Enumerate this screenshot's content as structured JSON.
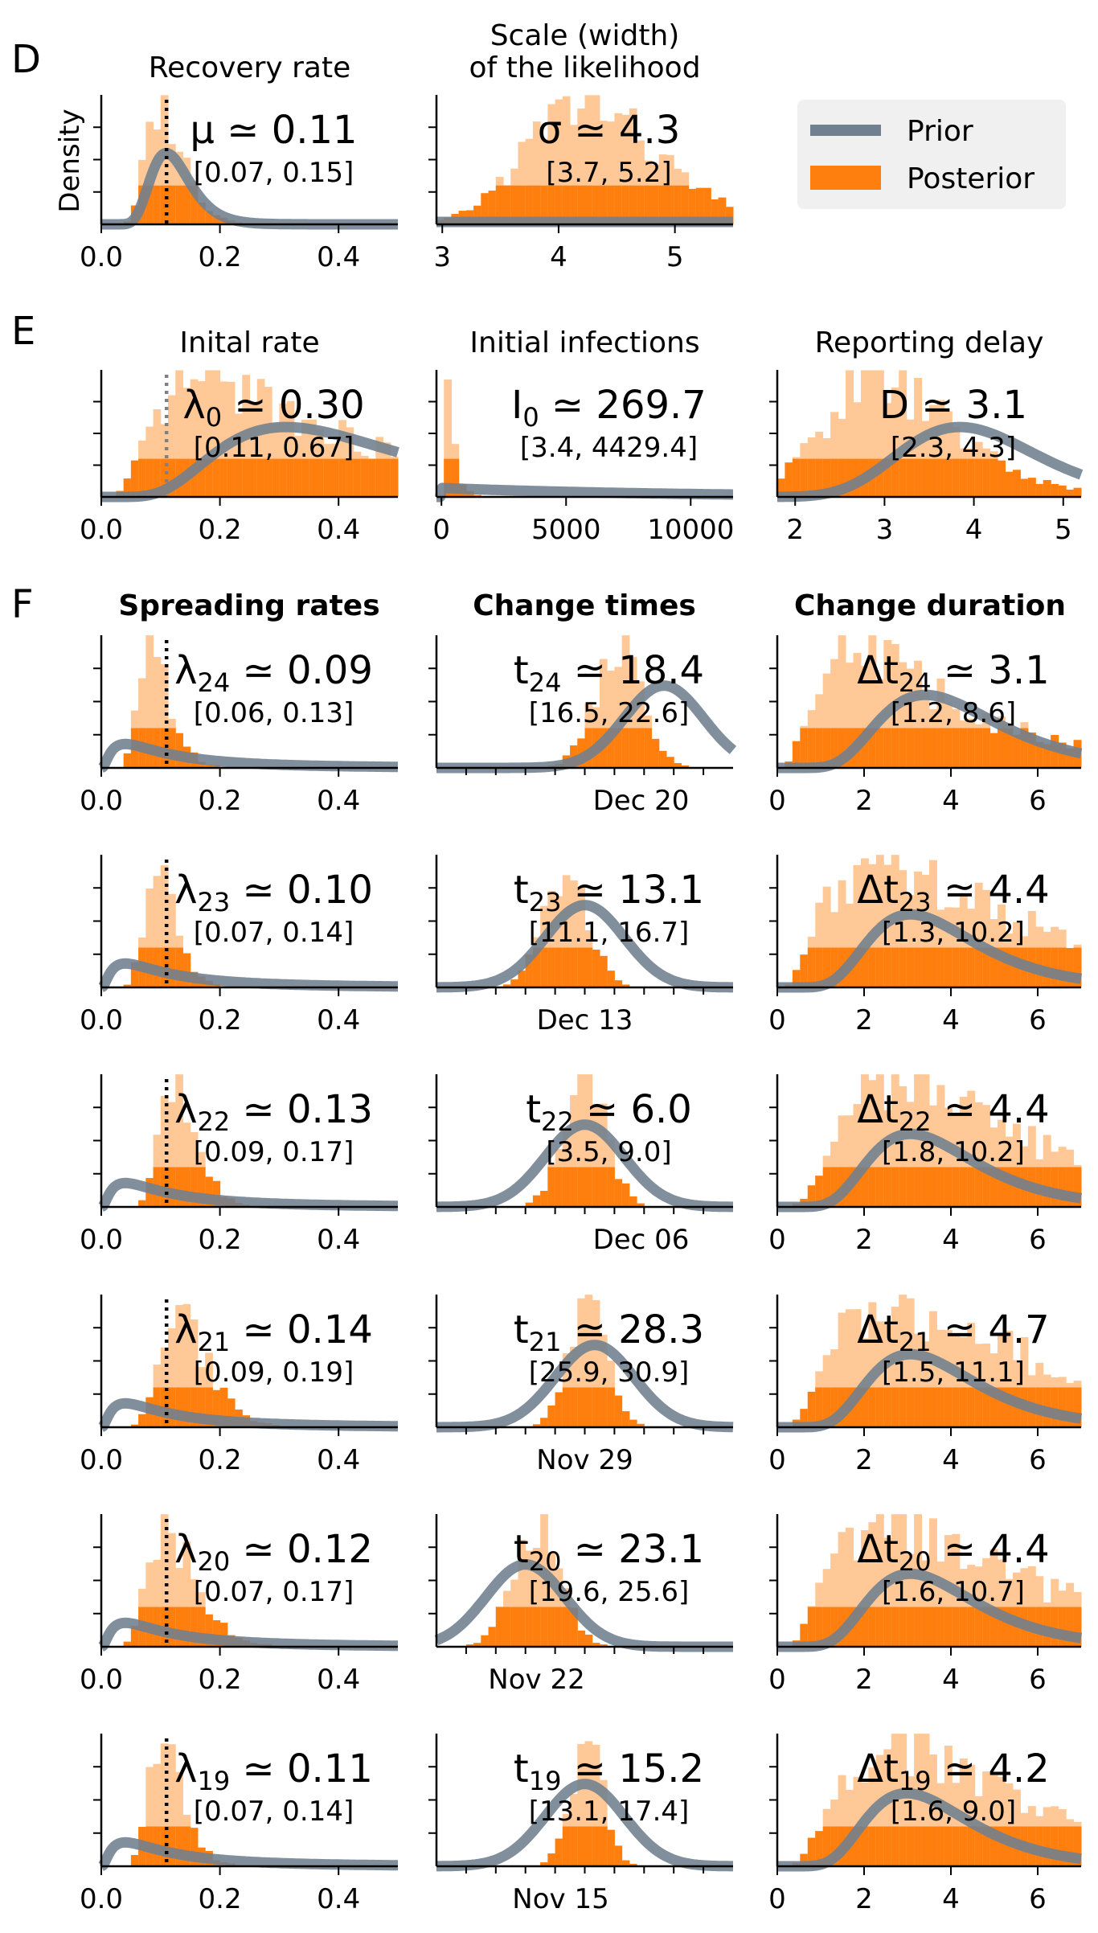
{
  "panel_letters": {
    "D": "D",
    "E": "E",
    "F": "F"
  },
  "ylabel": "Density",
  "legend": {
    "prior": "Prior",
    "posterior": "Posterior"
  },
  "colors": {
    "posterior": "#ff7f0e",
    "posterior_light": "#ffc896",
    "prior": "#708090",
    "prior_light": "#b6c0c8",
    "reference_black": "#000000",
    "reference_grey": "#808080",
    "legend_bg": "#f0f0f0"
  },
  "column_headers": {
    "spreading": "Spreading rates",
    "change_times": "Change times",
    "change_duration": "Change duration"
  },
  "chart_data": [
    {
      "id": "recovery",
      "type": "histogram",
      "title": "Recovery rate",
      "annotation": "μ ≃ 0.11",
      "interval": "[0.07, 0.15]",
      "xlim": [
        0,
        0.5
      ],
      "xticks": [
        "0.0",
        "0.2",
        "0.4"
      ],
      "reference": {
        "value": 0.11,
        "style": "dotted-black"
      },
      "posterior": {
        "shape": "lognormal",
        "median": 0.11,
        "lo": 0.07,
        "hi": 0.15
      },
      "prior": {
        "shape": "lognormal",
        "median": 0.12,
        "spread": 0.3
      }
    },
    {
      "id": "likelihood",
      "type": "histogram",
      "title": "Scale (width) of the likelihood",
      "title_lines": [
        "Scale (width)",
        "of the likelihood"
      ],
      "annotation": "σ ≃ 4.3",
      "interval": "[3.7, 5.2]",
      "xlim": [
        2.95,
        5.5
      ],
      "xticks": [
        "3",
        "4",
        "5"
      ],
      "reference": null,
      "posterior": {
        "shape": "lognormal",
        "median": 4.3,
        "lo": 3.7,
        "hi": 5.2
      },
      "prior": {
        "shape": "flat",
        "level": 0.04
      }
    },
    {
      "id": "initial-rate",
      "type": "histogram",
      "title": "Inital rate",
      "annotation": "λ0 ≃ 0.30",
      "sub": "0",
      "interval": "[0.11, 0.67]",
      "xlim": [
        0,
        0.5
      ],
      "xticks": [
        "0.0",
        "0.2",
        "0.4"
      ],
      "reference": {
        "value": 0.11,
        "style": "dotted-grey"
      },
      "posterior": {
        "shape": "lognormal",
        "median": 0.3,
        "lo": 0.11,
        "hi": 0.67
      },
      "prior": {
        "shape": "lognormal",
        "median": 0.4,
        "spread": 0.5
      }
    },
    {
      "id": "initial-infections",
      "type": "histogram",
      "title": "Initial infections",
      "annotation": "I0 ≃ 269.7",
      "sub": "0",
      "interval": "[3.4, 4429.4]",
      "xlim": [
        -200,
        11700
      ],
      "xticks": [
        "0",
        "5000",
        "10000"
      ],
      "reference": null,
      "posterior": {
        "shape": "decay",
        "scale": 300
      },
      "prior": {
        "shape": "decay",
        "scale": 9000
      }
    },
    {
      "id": "reporting-delay",
      "type": "histogram",
      "title": "Reporting delay",
      "annotation": "D ≃ 3.1",
      "interval": "[2.3, 4.3]",
      "xlim": [
        1.8,
        5.2
      ],
      "xticks": [
        "2",
        "3",
        "4",
        "5"
      ],
      "reference": null,
      "posterior": {
        "shape": "lognormal",
        "median": 3.1,
        "lo": 2.3,
        "hi": 4.3
      },
      "prior": {
        "shape": "lognormal",
        "median": 4.0,
        "spread": 0.2
      }
    },
    {
      "id": "lambda-24",
      "type": "histogram",
      "annotation": "λ24 ≃ 0.09",
      "sub": "24",
      "interval": "[0.06, 0.13]",
      "xlim": [
        0,
        0.5
      ],
      "xticks": [
        "0.0",
        "0.2",
        "0.4"
      ],
      "reference": {
        "value": 0.11,
        "style": "dotted-black"
      },
      "posterior": {
        "shape": "lognormal",
        "median": 0.09,
        "lo": 0.06,
        "hi": 0.13
      },
      "prior": {
        "shape": "lognormal",
        "median": 0.11,
        "spread": 1.0
      }
    },
    {
      "id": "t-24",
      "type": "histogram",
      "annotation": "t24 ≃ 18.4",
      "sub": "24",
      "interval": "[16.5, 22.6]",
      "xlim": [
        0,
        30
      ],
      "xticks": [],
      "xlabel_center": "Dec 20",
      "reference": null,
      "posterior": {
        "shape": "normal",
        "mean": 18.4,
        "lo": 16.5,
        "hi": 22.6
      },
      "prior": {
        "shape": "normal",
        "mean": 23,
        "sd": 4
      }
    },
    {
      "id": "dt-24",
      "type": "histogram",
      "annotation": "Δt24 ≃ 3.1",
      "sub": "24",
      "interval": "[1.2, 8.6]",
      "xlim": [
        0,
        7
      ],
      "xticks": [
        "0",
        "2",
        "4",
        "6"
      ],
      "reference": null,
      "posterior": {
        "shape": "lognormal",
        "median": 3.1,
        "lo": 1.2,
        "hi": 8.6
      },
      "prior": {
        "shape": "lognormal",
        "median": 4.0,
        "spread": 0.4
      }
    },
    {
      "id": "lambda-23",
      "type": "histogram",
      "annotation": "λ23 ≃ 0.10",
      "sub": "23",
      "interval": "[0.07, 0.14]",
      "xlim": [
        0,
        0.5
      ],
      "xticks": [
        "0.0",
        "0.2",
        "0.4"
      ],
      "reference": {
        "value": 0.11,
        "style": "dotted-black"
      },
      "posterior": {
        "shape": "lognormal",
        "median": 0.1,
        "lo": 0.07,
        "hi": 0.14
      },
      "prior": {
        "shape": "lognormal",
        "median": 0.11,
        "spread": 1.0
      }
    },
    {
      "id": "t-23",
      "type": "histogram",
      "annotation": "t23 ≃ 13.1",
      "sub": "23",
      "interval": "[11.1, 16.7]",
      "xlim": [
        0,
        30
      ],
      "xticks": [],
      "xlabel_center": "Dec 13",
      "reference": null,
      "posterior": {
        "shape": "normal",
        "mean": 13.1,
        "lo": 11.1,
        "hi": 16.7
      },
      "prior": {
        "shape": "normal",
        "mean": 15,
        "sd": 4
      }
    },
    {
      "id": "dt-23",
      "type": "histogram",
      "annotation": "Δt23 ≃ 4.4",
      "sub": "23",
      "interval": "[1.3, 10.2]",
      "xlim": [
        0,
        7
      ],
      "xticks": [
        "0",
        "2",
        "4",
        "6"
      ],
      "reference": null,
      "posterior": {
        "shape": "lognormal",
        "median": 4.4,
        "lo": 1.3,
        "hi": 10.2
      },
      "prior": {
        "shape": "lognormal",
        "median": 3.6,
        "spread": 0.4
      }
    },
    {
      "id": "lambda-22",
      "type": "histogram",
      "annotation": "λ22 ≃ 0.13",
      "sub": "22",
      "interval": "[0.09, 0.17]",
      "xlim": [
        0,
        0.5
      ],
      "xticks": [
        "0.0",
        "0.2",
        "0.4"
      ],
      "reference": {
        "value": 0.11,
        "style": "dotted-black"
      },
      "posterior": {
        "shape": "lognormal",
        "median": 0.13,
        "lo": 0.09,
        "hi": 0.17
      },
      "prior": {
        "shape": "lognormal",
        "median": 0.11,
        "spread": 1.0
      }
    },
    {
      "id": "t-22",
      "type": "histogram",
      "annotation": "t22 ≃ 6.0",
      "sub": "22",
      "interval": "[3.5, 9.0]",
      "xlim": [
        -9,
        21
      ],
      "xticks": [],
      "xlabel_center": "Dec 06",
      "reference": null,
      "posterior": {
        "shape": "normal",
        "mean": 6.0,
        "lo": 3.5,
        "hi": 9.0
      },
      "prior": {
        "shape": "normal",
        "mean": 6,
        "sd": 4
      }
    },
    {
      "id": "dt-22",
      "type": "histogram",
      "annotation": "Δt22 ≃ 4.4",
      "sub": "22",
      "interval": "[1.8, 10.2]",
      "xlim": [
        0,
        7
      ],
      "xticks": [
        "0",
        "2",
        "4",
        "6"
      ],
      "reference": null,
      "posterior": {
        "shape": "lognormal",
        "median": 4.4,
        "lo": 1.8,
        "hi": 10.2
      },
      "prior": {
        "shape": "lognormal",
        "median": 3.6,
        "spread": 0.4
      }
    },
    {
      "id": "lambda-21",
      "type": "histogram",
      "annotation": "λ21 ≃ 0.14",
      "sub": "21",
      "interval": "[0.09, 0.19]",
      "xlim": [
        0,
        0.5
      ],
      "xticks": [
        "0.0",
        "0.2",
        "0.4"
      ],
      "reference": {
        "value": 0.11,
        "style": "dotted-black"
      },
      "posterior": {
        "shape": "lognormal",
        "median": 0.14,
        "lo": 0.09,
        "hi": 0.19
      },
      "prior": {
        "shape": "lognormal",
        "median": 0.11,
        "spread": 1.0
      }
    },
    {
      "id": "t-21",
      "type": "histogram",
      "annotation": "t21 ≃ 28.3",
      "sub": "21",
      "interval": "[25.9, 30.9]",
      "xlim": [
        13,
        43
      ],
      "xticks": [],
      "xlabel_center": "Nov 29",
      "reference": null,
      "posterior": {
        "shape": "normal",
        "mean": 28.3,
        "lo": 25.9,
        "hi": 30.9
      },
      "prior": {
        "shape": "normal",
        "mean": 29,
        "sd": 4
      }
    },
    {
      "id": "dt-21",
      "type": "histogram",
      "annotation": "Δt21 ≃ 4.7",
      "sub": "21",
      "interval": "[1.5, 11.1]",
      "xlim": [
        0,
        7
      ],
      "xticks": [
        "0",
        "2",
        "4",
        "6"
      ],
      "reference": null,
      "posterior": {
        "shape": "lognormal",
        "median": 4.7,
        "lo": 1.5,
        "hi": 11.1
      },
      "prior": {
        "shape": "lognormal",
        "median": 3.6,
        "spread": 0.4
      }
    },
    {
      "id": "lambda-20",
      "type": "histogram",
      "annotation": "λ20 ≃ 0.12",
      "sub": "20",
      "interval": "[0.07, 0.17]",
      "xlim": [
        0,
        0.5
      ],
      "xticks": [
        "0.0",
        "0.2",
        "0.4"
      ],
      "reference": {
        "value": 0.11,
        "style": "dotted-black"
      },
      "posterior": {
        "shape": "lognormal",
        "median": 0.12,
        "lo": 0.07,
        "hi": 0.17
      },
      "prior": {
        "shape": "lognormal",
        "median": 0.11,
        "spread": 1.0
      }
    },
    {
      "id": "t-20",
      "type": "histogram",
      "annotation": "t20 ≃ 23.1",
      "sub": "20",
      "interval": "[19.6, 25.6]",
      "xlim": [
        13,
        43
      ],
      "xticks": [],
      "xlabel_center": "Nov 22",
      "reference": null,
      "posterior": {
        "shape": "normal",
        "mean": 23.1,
        "lo": 19.6,
        "hi": 25.6
      },
      "prior": {
        "shape": "normal",
        "mean": 22,
        "sd": 4
      }
    },
    {
      "id": "dt-20",
      "type": "histogram",
      "annotation": "Δt20 ≃ 4.4",
      "sub": "20",
      "interval": "[1.6, 10.7]",
      "xlim": [
        0,
        7
      ],
      "xticks": [
        "0",
        "2",
        "4",
        "6"
      ],
      "reference": null,
      "posterior": {
        "shape": "lognormal",
        "median": 4.4,
        "lo": 1.6,
        "hi": 10.7
      },
      "prior": {
        "shape": "lognormal",
        "median": 3.6,
        "spread": 0.4
      }
    },
    {
      "id": "lambda-19",
      "type": "histogram",
      "annotation": "λ19 ≃ 0.11",
      "sub": "19",
      "interval": "[0.07, 0.14]",
      "xlim": [
        0,
        0.5
      ],
      "xticks": [
        "0.0",
        "0.2",
        "0.4"
      ],
      "reference": {
        "value": 0.11,
        "style": "dotted-black"
      },
      "posterior": {
        "shape": "lognormal",
        "median": 0.11,
        "lo": 0.07,
        "hi": 0.14
      },
      "prior": {
        "shape": "lognormal",
        "median": 0.11,
        "spread": 1.0
      }
    },
    {
      "id": "t-19",
      "type": "histogram",
      "annotation": "t19 ≃ 15.2",
      "sub": "19",
      "interval": "[13.1, 17.4]",
      "xlim": [
        0,
        30
      ],
      "xticks": [],
      "xlabel_center": "Nov 15",
      "reference": null,
      "posterior": {
        "shape": "normal",
        "mean": 15.2,
        "lo": 13.1,
        "hi": 17.4
      },
      "prior": {
        "shape": "normal",
        "mean": 15,
        "sd": 4
      }
    },
    {
      "id": "dt-19",
      "type": "histogram",
      "annotation": "Δt19 ≃ 4.2",
      "sub": "19",
      "interval": "[1.6, 9.0]",
      "xlim": [
        0,
        7
      ],
      "xticks": [
        "0",
        "2",
        "4",
        "6"
      ],
      "reference": null,
      "posterior": {
        "shape": "lognormal",
        "median": 4.2,
        "lo": 1.6,
        "hi": 9.0
      },
      "prior": {
        "shape": "lognormal",
        "median": 3.5,
        "spread": 0.4
      }
    }
  ]
}
